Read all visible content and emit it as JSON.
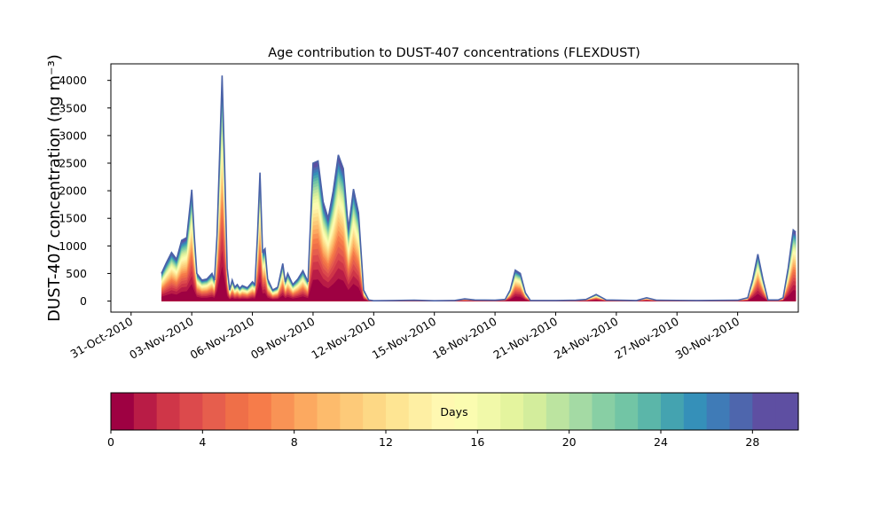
{
  "chart_data": {
    "type": "area",
    "title": "Age contribution to DUST-407 concentrations (FLEXDUST)",
    "ylabel": "DUST-407 concentration (ng m⁻³)",
    "xlabel": "",
    "x_range": [
      "2010-10-30",
      "2010-12-03"
    ],
    "ylim": [
      -200,
      4300
    ],
    "y_ticks": [
      0,
      500,
      1000,
      1500,
      2000,
      2500,
      3000,
      3500,
      4000
    ],
    "x_ticks": [
      "2010-10-31",
      "2010-11-03",
      "2010-11-06",
      "2010-11-09",
      "2010-11-12",
      "2010-11-15",
      "2010-11-18",
      "2010-11-21",
      "2010-11-24",
      "2010-11-27",
      "2010-11-30"
    ],
    "x_tick_labels": [
      "31-Oct-2010",
      "03-Nov-2010",
      "06-Nov-2010",
      "09-Nov-2010",
      "12-Nov-2010",
      "15-Nov-2010",
      "18-Nov-2010",
      "21-Nov-2010",
      "24-Nov-2010",
      "27-Nov-2010",
      "30-Nov-2010"
    ],
    "total_concentration": [
      [
        "2010-11-01 12:00",
        500
      ],
      [
        "2010-11-01 18:00",
        700
      ],
      [
        "2010-11-02 00:00",
        880
      ],
      [
        "2010-11-02 06:00",
        760
      ],
      [
        "2010-11-02 12:00",
        1100
      ],
      [
        "2010-11-02 18:00",
        1150
      ],
      [
        "2010-11-03 00:00",
        2020
      ],
      [
        "2010-11-03 03:00",
        1200
      ],
      [
        "2010-11-03 06:00",
        500
      ],
      [
        "2010-11-03 12:00",
        380
      ],
      [
        "2010-11-03 18:00",
        400
      ],
      [
        "2010-11-04 00:00",
        500
      ],
      [
        "2010-11-04 03:00",
        380
      ],
      [
        "2010-11-04 06:00",
        1200
      ],
      [
        "2010-11-04 09:00",
        2600
      ],
      [
        "2010-11-04 12:00",
        4090
      ],
      [
        "2010-11-04 15:00",
        2500
      ],
      [
        "2010-11-04 18:00",
        600
      ],
      [
        "2010-11-04 21:00",
        200
      ],
      [
        "2010-11-05 00:00",
        380
      ],
      [
        "2010-11-05 03:00",
        250
      ],
      [
        "2010-11-05 06:00",
        300
      ],
      [
        "2010-11-05 09:00",
        230
      ],
      [
        "2010-11-05 12:00",
        280
      ],
      [
        "2010-11-05 18:00",
        240
      ],
      [
        "2010-11-06 00:00",
        350
      ],
      [
        "2010-11-06 03:00",
        300
      ],
      [
        "2010-11-06 06:00",
        1200
      ],
      [
        "2010-11-06 09:00",
        2330
      ],
      [
        "2010-11-06 12:00",
        900
      ],
      [
        "2010-11-06 15:00",
        950
      ],
      [
        "2010-11-06 18:00",
        400
      ],
      [
        "2010-11-07 00:00",
        200
      ],
      [
        "2010-11-07 06:00",
        250
      ],
      [
        "2010-11-07 12:00",
        680
      ],
      [
        "2010-11-07 15:00",
        350
      ],
      [
        "2010-11-07 18:00",
        500
      ],
      [
        "2010-11-08 00:00",
        300
      ],
      [
        "2010-11-08 06:00",
        400
      ],
      [
        "2010-11-08 12:00",
        550
      ],
      [
        "2010-11-08 18:00",
        350
      ],
      [
        "2010-11-09 00:00",
        2500
      ],
      [
        "2010-11-09 06:00",
        2540
      ],
      [
        "2010-11-09 12:00",
        1800
      ],
      [
        "2010-11-09 18:00",
        1500
      ],
      [
        "2010-11-10 00:00",
        2000
      ],
      [
        "2010-11-10 06:00",
        2650
      ],
      [
        "2010-11-10 12:00",
        2400
      ],
      [
        "2010-11-10 18:00",
        1300
      ],
      [
        "2010-11-11 00:00",
        2030
      ],
      [
        "2010-11-11 06:00",
        1600
      ],
      [
        "2010-11-11 12:00",
        200
      ],
      [
        "2010-11-11 18:00",
        20
      ],
      [
        "2010-11-12 00:00",
        5
      ],
      [
        "2010-11-13 00:00",
        10
      ],
      [
        "2010-11-14 00:00",
        15
      ],
      [
        "2010-11-15 00:00",
        5
      ],
      [
        "2010-11-16 00:00",
        10
      ],
      [
        "2010-11-16 12:00",
        40
      ],
      [
        "2010-11-17 00:00",
        20
      ],
      [
        "2010-11-18 00:00",
        15
      ],
      [
        "2010-11-18 12:00",
        30
      ],
      [
        "2010-11-18 18:00",
        200
      ],
      [
        "2010-11-19 00:00",
        560
      ],
      [
        "2010-11-19 06:00",
        500
      ],
      [
        "2010-11-19 12:00",
        150
      ],
      [
        "2010-11-19 18:00",
        10
      ],
      [
        "2010-11-21 00:00",
        10
      ],
      [
        "2010-11-22 00:00",
        15
      ],
      [
        "2010-11-22 12:00",
        30
      ],
      [
        "2010-11-23 00:00",
        120
      ],
      [
        "2010-11-23 12:00",
        20
      ],
      [
        "2010-11-25 00:00",
        10
      ],
      [
        "2010-11-25 12:00",
        60
      ],
      [
        "2010-11-26 00:00",
        15
      ],
      [
        "2010-11-28 00:00",
        10
      ],
      [
        "2010-11-30 00:00",
        15
      ],
      [
        "2010-11-30 12:00",
        60
      ],
      [
        "2010-11-30 18:00",
        400
      ],
      [
        "2010-12-01 00:00",
        850
      ],
      [
        "2010-12-01 06:00",
        400
      ],
      [
        "2010-12-01 12:00",
        20
      ],
      [
        "2010-12-02 00:00",
        20
      ],
      [
        "2010-12-02 06:00",
        60
      ],
      [
        "2010-12-02 12:00",
        600
      ],
      [
        "2010-12-02 18:00",
        1290
      ],
      [
        "2010-12-02 21:00",
        1250
      ]
    ],
    "colorbar": {
      "label": "Days",
      "min": 0,
      "max": 30,
      "ticks": [
        0,
        4,
        8,
        12,
        16,
        20,
        24,
        28
      ],
      "colors": [
        "#9e0142",
        "#b91c46",
        "#cf3648",
        "#dc4a4c",
        "#e65e4d",
        "#ef6f48",
        "#f67c4a",
        "#f99355",
        "#fca960",
        "#fdbb6c",
        "#fdca79",
        "#fdd885",
        "#fee593",
        "#feefa3",
        "#fff8b1",
        "#fbfcb0",
        "#f1f9a9",
        "#e4f49e",
        "#d3ed9c",
        "#bce4a0",
        "#a4daa4",
        "#88cfa4",
        "#72c5a5",
        "#5bb6a9",
        "#44a3b0",
        "#3590b9",
        "#3f7bb7",
        "#4e66ad",
        "#5e4fa2",
        "#5e4fa2"
      ]
    }
  }
}
